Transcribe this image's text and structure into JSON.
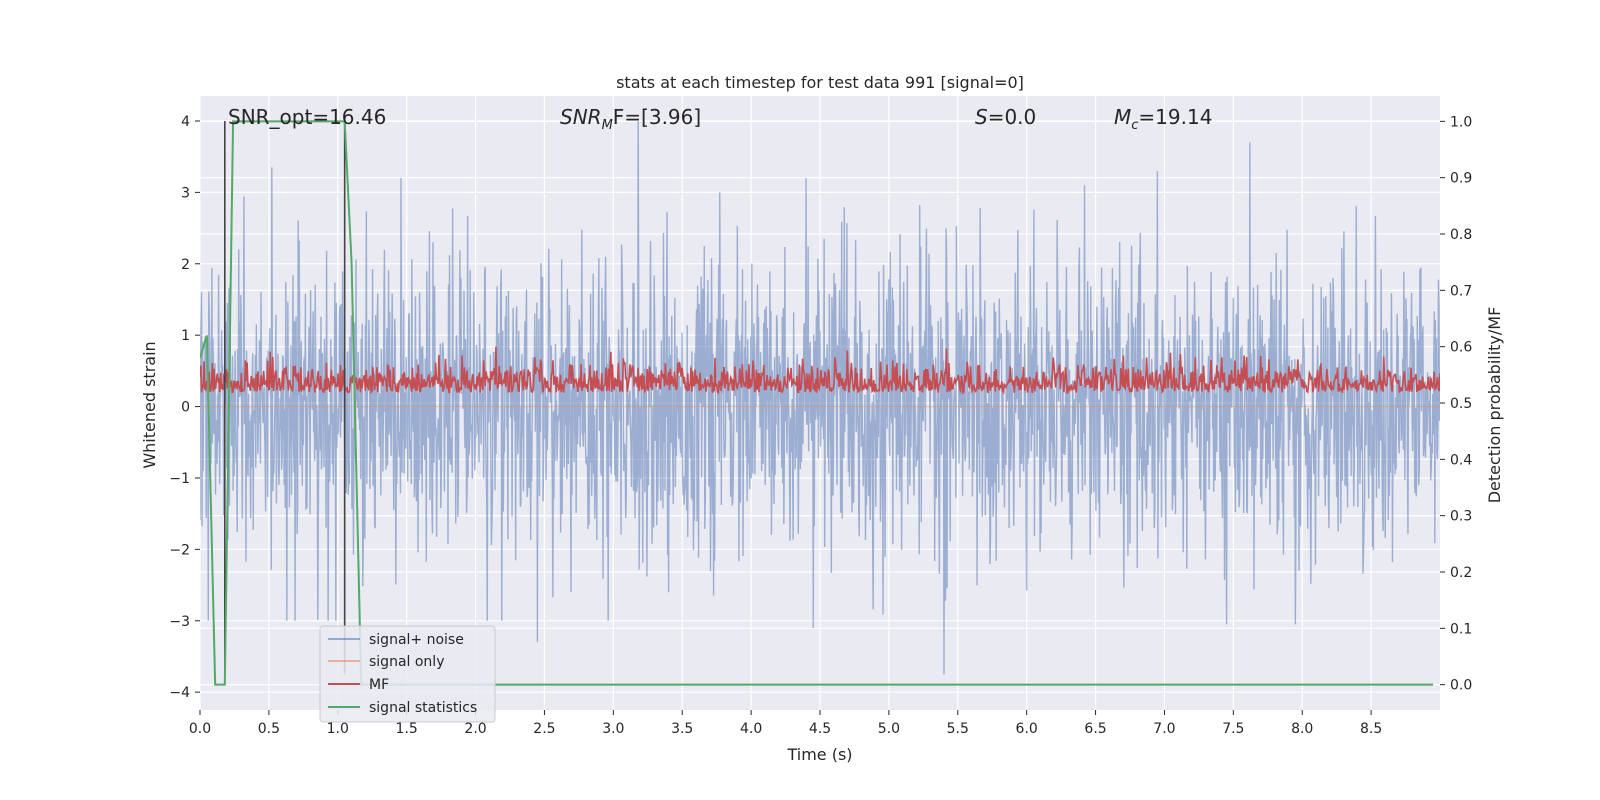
{
  "chart_data": {
    "type": "line",
    "title": "stats at each timestep for test data 991 [signal=0]",
    "xlabel": "Time (s)",
    "ylabel": "Whitened strain",
    "y2label": "Detection probability/MF",
    "xlim": [
      0.0,
      9.0
    ],
    "ylim": [
      -4.25,
      4.35
    ],
    "y2lim": [
      -0.045,
      1.045
    ],
    "xticks": [
      "0.0",
      "0.5",
      "1.0",
      "1.5",
      "2.0",
      "2.5",
      "3.0",
      "3.5",
      "4.0",
      "4.5",
      "5.0",
      "5.5",
      "6.0",
      "6.5",
      "7.0",
      "7.5",
      "8.0",
      "8.5"
    ],
    "xtick_values": [
      0.0,
      0.5,
      1.0,
      1.5,
      2.0,
      2.5,
      3.0,
      3.5,
      4.0,
      4.5,
      5.0,
      5.5,
      6.0,
      6.5,
      7.0,
      7.5,
      8.0,
      8.5
    ],
    "yticks": [
      "−4",
      "−3",
      "−2",
      "−1",
      "0",
      "1",
      "2",
      "3",
      "4"
    ],
    "ytick_values": [
      -4,
      -3,
      -2,
      -1,
      0,
      1,
      2,
      3,
      4
    ],
    "y2ticks": [
      "0.0",
      "0.1",
      "0.2",
      "0.3",
      "0.4",
      "0.5",
      "0.6",
      "0.7",
      "0.8",
      "0.9",
      "1.0"
    ],
    "y2tick_values": [
      0.0,
      0.1,
      0.2,
      0.3,
      0.4,
      0.5,
      0.6,
      0.7,
      0.8,
      0.9,
      1.0
    ],
    "grid": true,
    "legend_position": "lower-left",
    "annotations": {
      "snr_opt": "SNR_opt=16.46",
      "snr_mf_main": "SNR",
      "snr_mf_sub": "M",
      "snr_mf_rest": "F=[3.96]",
      "s_main": "S",
      "s_rest": "=0.0",
      "mc_main": "M",
      "mc_sub": "c",
      "mc_rest": "=19.14"
    },
    "vertical_markers": [
      0.18,
      1.05
    ],
    "series": [
      {
        "name": "signal+ noise",
        "axis": "left",
        "color": "#4c72b0",
        "style": "noise",
        "x_range": [
          0.0,
          9.0
        ],
        "amplitude_sigma": 1.0,
        "peaks": [
          {
            "x": 0.52,
            "y": 3.35
          },
          {
            "x": 1.46,
            "y": 3.2
          },
          {
            "x": 3.18,
            "y": 4.0
          },
          {
            "x": 4.4,
            "y": 3.2
          },
          {
            "x": 6.42,
            "y": 3.1
          },
          {
            "x": 7.62,
            "y": 3.7
          },
          {
            "x": 6.95,
            "y": 3.3
          },
          {
            "x": 5.4,
            "y": -3.75
          },
          {
            "x": 2.45,
            "y": -3.3
          },
          {
            "x": 4.45,
            "y": -3.1
          },
          {
            "x": 7.45,
            "y": -3.05
          },
          {
            "x": 7.95,
            "y": -3.05
          },
          {
            "x": 0.63,
            "y": -3.0
          },
          {
            "x": 3.4,
            "y": -2.6
          }
        ]
      },
      {
        "name": "signal only",
        "axis": "left",
        "color": "#dd8452",
        "style": "flat",
        "y": 0.0
      },
      {
        "name": "MF",
        "axis": "right",
        "color": "#c44e52",
        "style": "noise",
        "x_range": [
          0.0,
          9.0
        ],
        "baseline": 0.53,
        "min": 0.5,
        "max": 0.6
      },
      {
        "name": "signal statistics",
        "axis": "right",
        "color": "#55a868",
        "style": "line",
        "x": [
          0.0,
          0.05,
          0.11,
          0.18,
          0.24,
          0.3,
          1.05,
          1.1,
          1.17,
          8.95
        ],
        "y": [
          0.58,
          0.62,
          0.0,
          0.0,
          1.0,
          1.0,
          1.0,
          0.75,
          0.0,
          0.0
        ]
      }
    ]
  }
}
